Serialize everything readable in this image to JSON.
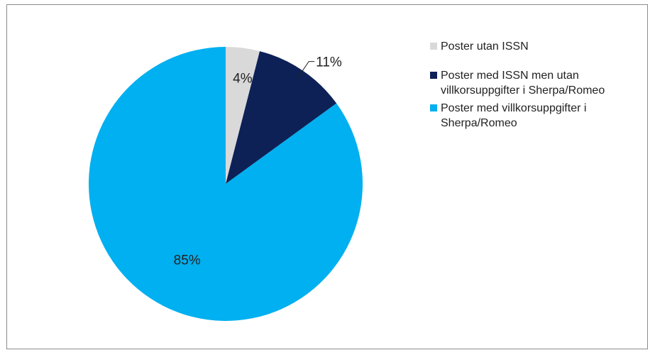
{
  "chart_data": {
    "type": "pie",
    "title": "",
    "start_angle_deg": 0,
    "direction": "clockwise",
    "slices": [
      {
        "label": "Poster utan ISSN",
        "value": 4,
        "display": "4%",
        "color": "#d9d9d9"
      },
      {
        "label": "Poster med ISSN men utan villkorsuppgifter i Sherpa/Romeo",
        "value": 11,
        "display": "11%",
        "color": "#0d2157"
      },
      {
        "label": "Poster med villkorsuppgifter i Sherpa/Romeo",
        "value": 85,
        "display": "85%",
        "color": "#00b0f0"
      }
    ],
    "legend_position": "right"
  }
}
